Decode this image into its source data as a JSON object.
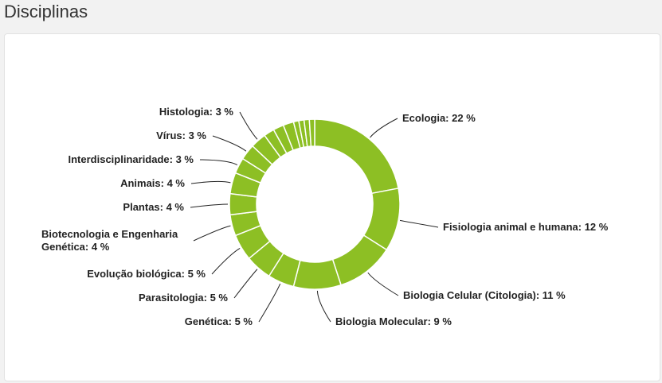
{
  "header": {
    "title": "Disciplinas"
  },
  "chart_data": {
    "type": "donut",
    "color": "#8dbf24",
    "values": [
      22,
      12,
      11,
      9,
      5,
      5,
      5,
      4,
      4,
      4,
      3,
      3,
      3,
      2,
      2,
      2,
      1,
      1,
      1,
      1
    ],
    "value_labels": [
      "Ecologia: 22 %",
      "Fisiologia animal e humana: 12 %",
      "Biologia Celular (Citologia): 11 %",
      "Biologia Molecular: 9 %",
      "Genética: 5 %",
      "Parasitologia: 5 %",
      "Evolução biológica: 5 %",
      "Biotecnologia e Engenharia Genética: 4 %",
      "Plantas: 4 %",
      "Animais: 4 %",
      "Interdisciplinaridade: 3 %",
      "Vírus: 3 %",
      "Histologia: 3 %",
      null,
      null,
      null,
      null,
      null,
      null,
      null
    ]
  }
}
